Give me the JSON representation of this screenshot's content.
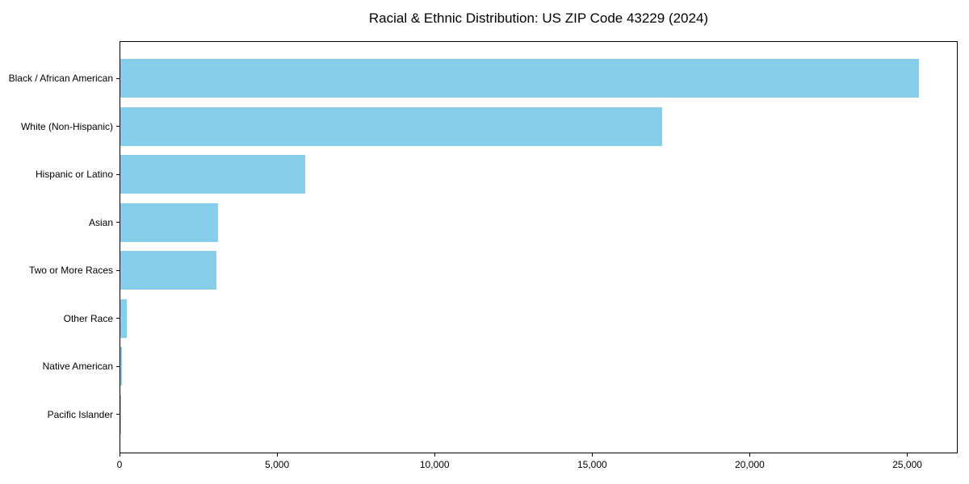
{
  "figure": {
    "title": "Racial & Ethnic Distribution: US ZIP Code 43229 (2024)"
  },
  "chart_data": {
    "type": "bar",
    "orientation": "horizontal",
    "title": "Racial & Ethnic Distribution: US ZIP Code 43229 (2024)",
    "categories": [
      "Black / African American",
      "White (Non-Hispanic)",
      "Hispanic or Latino",
      "Asian",
      "Two or More Races",
      "Other Race",
      "Native American",
      "Pacific Islander"
    ],
    "values": [
      25350,
      17200,
      5870,
      3100,
      3060,
      200,
      40,
      10
    ],
    "xlabel": "",
    "ylabel": "",
    "xlim": [
      0,
      26600
    ],
    "x_ticks": [
      0,
      5000,
      10000,
      15000,
      20000,
      25000
    ],
    "x_tick_labels": [
      "0",
      "5,000",
      "10,000",
      "15,000",
      "20,000",
      "25,000"
    ],
    "bar_color": "#87CEEB",
    "spine_color": "#000000",
    "text_color": "#000000",
    "background_color": "#ffffff",
    "grid": false,
    "legend": null
  }
}
